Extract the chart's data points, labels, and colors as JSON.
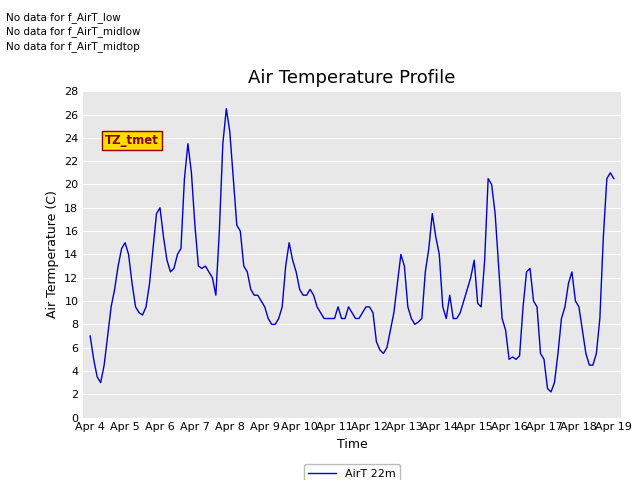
{
  "title": "Air Temperature Profile",
  "xlabel": "Time",
  "ylabel": "Air Termperature (C)",
  "legend_label": "AirT 22m",
  "ylim": [
    0,
    28
  ],
  "yticks": [
    0,
    2,
    4,
    6,
    8,
    10,
    12,
    14,
    16,
    18,
    20,
    22,
    24,
    26,
    28
  ],
  "xtick_labels": [
    "Apr 4",
    "Apr 5",
    "Apr 6",
    "Apr 7",
    "Apr 8",
    "Apr 9",
    "Apr 10",
    "Apr 11",
    "Apr 12",
    "Apr 13",
    "Apr 14",
    "Apr 15",
    "Apr 16",
    "Apr 17",
    "Apr 18",
    "Apr 19"
  ],
  "annotations": [
    "No data for f_AirT_low",
    "No data for f_AirT_midlow",
    "No data for f_AirT_midtop"
  ],
  "tz_label": "TZ_tmet",
  "line_color": "#0000cc",
  "bg_color": "#ffffff",
  "plot_bg_color": "#e8e8e8",
  "title_fontsize": 13,
  "label_fontsize": 9,
  "tick_fontsize": 8,
  "time_data": [
    0.0,
    0.1,
    0.2,
    0.3,
    0.4,
    0.5,
    0.6,
    0.7,
    0.8,
    0.9,
    1.0,
    1.1,
    1.2,
    1.3,
    1.4,
    1.5,
    1.6,
    1.7,
    1.8,
    1.9,
    2.0,
    2.1,
    2.2,
    2.3,
    2.4,
    2.5,
    2.6,
    2.7,
    2.8,
    2.9,
    3.0,
    3.1,
    3.2,
    3.3,
    3.4,
    3.5,
    3.6,
    3.7,
    3.8,
    3.9,
    4.0,
    4.1,
    4.2,
    4.3,
    4.4,
    4.5,
    4.6,
    4.7,
    4.8,
    4.9,
    5.0,
    5.1,
    5.2,
    5.3,
    5.4,
    5.5,
    5.6,
    5.7,
    5.8,
    5.9,
    6.0,
    6.1,
    6.2,
    6.3,
    6.4,
    6.5,
    6.6,
    6.7,
    6.8,
    6.9,
    7.0,
    7.1,
    7.2,
    7.3,
    7.4,
    7.5,
    7.6,
    7.7,
    7.8,
    7.9,
    8.0,
    8.1,
    8.2,
    8.3,
    8.4,
    8.5,
    8.6,
    8.7,
    8.8,
    8.9,
    9.0,
    9.1,
    9.2,
    9.3,
    9.4,
    9.5,
    9.6,
    9.7,
    9.8,
    9.9,
    10.0,
    10.1,
    10.2,
    10.3,
    10.4,
    10.5,
    10.6,
    10.7,
    10.8,
    10.9,
    11.0,
    11.1,
    11.2,
    11.3,
    11.4,
    11.5,
    11.6,
    11.7,
    11.8,
    11.9,
    12.0,
    12.1,
    12.2,
    12.3,
    12.4,
    12.5,
    12.6,
    12.7,
    12.8,
    12.9,
    13.0,
    13.1,
    13.2,
    13.3,
    13.4,
    13.5,
    13.6,
    13.7,
    13.8,
    13.9,
    14.0,
    14.1,
    14.2,
    14.3,
    14.4,
    14.5,
    14.6,
    14.7,
    14.8,
    14.9,
    15.0
  ],
  "temp_data": [
    7.0,
    5.0,
    3.5,
    3.0,
    4.5,
    7.0,
    9.5,
    11.0,
    13.0,
    14.5,
    15.0,
    14.0,
    11.5,
    9.5,
    9.0,
    8.8,
    9.5,
    11.5,
    14.5,
    17.5,
    18.0,
    15.5,
    13.5,
    12.5,
    12.8,
    14.0,
    14.5,
    20.5,
    23.5,
    21.0,
    16.5,
    13.0,
    12.8,
    13.0,
    12.5,
    12.0,
    10.5,
    16.0,
    23.5,
    26.5,
    24.5,
    20.5,
    16.5,
    16.0,
    13.0,
    12.5,
    11.0,
    10.5,
    10.5,
    10.0,
    9.5,
    8.5,
    8.0,
    8.0,
    8.5,
    9.5,
    13.0,
    15.0,
    13.5,
    12.5,
    11.0,
    10.5,
    10.5,
    11.0,
    10.5,
    9.5,
    9.0,
    8.5,
    8.5,
    8.5,
    8.5,
    9.5,
    8.5,
    8.5,
    9.5,
    9.0,
    8.5,
    8.5,
    9.0,
    9.5,
    9.5,
    9.0,
    6.5,
    5.8,
    5.5,
    6.0,
    7.5,
    9.0,
    11.5,
    14.0,
    13.0,
    9.5,
    8.5,
    8.0,
    8.2,
    8.5,
    12.5,
    14.5,
    17.5,
    15.5,
    14.0,
    9.5,
    8.5,
    10.5,
    8.5,
    8.5,
    9.0,
    10.0,
    11.0,
    12.0,
    13.5,
    9.8,
    9.5,
    13.5,
    20.5,
    20.0,
    17.5,
    13.0,
    8.5,
    7.5,
    5.0,
    5.2,
    5.0,
    5.3,
    9.5,
    12.5,
    12.8,
    10.0,
    9.5,
    5.5,
    5.0,
    2.5,
    2.2,
    3.0,
    5.5,
    8.5,
    9.5,
    11.5,
    12.5,
    10.0,
    9.5,
    7.5,
    5.5,
    4.5,
    4.5,
    5.5,
    8.5,
    15.5,
    20.5,
    21.0,
    20.5
  ]
}
